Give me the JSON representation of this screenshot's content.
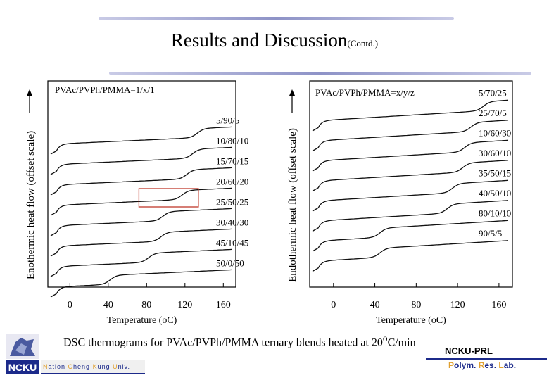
{
  "slide": {
    "title": "Results and Discussion",
    "title_sub": "(Contd.)",
    "caption_pre": "DSC thermograms for PVAc/PVPh/PMMA ternary blends heated at 20",
    "caption_sup": "o",
    "caption_post": "C/min",
    "lab_name": "NCKU-PRL",
    "lab_full": [
      "P",
      "olym. ",
      "R",
      "es. ",
      "L",
      "ab."
    ],
    "university": [
      "N",
      "ation ",
      "C",
      "heng ",
      "K",
      "ung ",
      "U",
      "niv."
    ],
    "logo_text": "NCKU"
  },
  "chart_data": [
    {
      "type": "line",
      "title": "PVAc/PVPh/PMMA=1/x/1",
      "xlabel": "Temperature (oC)",
      "ylabel": "Enothermic heat flow (offset scale)",
      "xlim": [
        -20,
        170
      ],
      "xticks": [
        0,
        40,
        80,
        120,
        160
      ],
      "highlight_box_x_range": [
        72,
        134
      ],
      "series": [
        {
          "name": "5/90/5",
          "tg": 133
        },
        {
          "name": "10/80/10",
          "tg": 128
        },
        {
          "name": "15/70/15",
          "tg": 122
        },
        {
          "name": "20/60/20",
          "tg": 117
        },
        {
          "name": "25/50/25",
          "tg": 97
        },
        {
          "name": "30/40/30",
          "tg": 95
        },
        {
          "name": "45/10/45",
          "tg": 82
        },
        {
          "name": "50/0/50",
          "tg": 42
        }
      ]
    },
    {
      "type": "line",
      "title": "PVAc/PVPh/PMMA=x/y/z",
      "xlabel": "Temperature (oC)",
      "ylabel": "Endothermic heat flow (offset scale)",
      "xlim": [
        -20,
        170
      ],
      "xticks": [
        0,
        40,
        80,
        120,
        160
      ],
      "series": [
        {
          "name": "5/70/25",
          "tg": 145
        },
        {
          "name": "25/70/5",
          "tg": 133
        },
        {
          "name": "10/60/30",
          "tg": 127
        },
        {
          "name": "30/60/10",
          "tg": 125
        },
        {
          "name": "35/50/15",
          "tg": 115
        },
        {
          "name": "40/50/10",
          "tg": 110
        },
        {
          "name": "80/10/10",
          "tg": 45
        },
        {
          "name": "90/5/5",
          "tg": 45
        }
      ]
    }
  ]
}
